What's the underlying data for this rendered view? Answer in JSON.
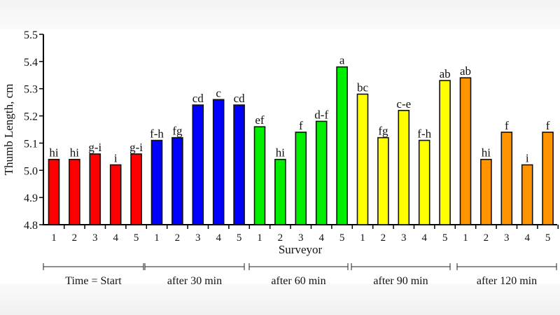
{
  "chart_data": {
    "type": "bar",
    "title": "",
    "xlabel": "Surveyor",
    "ylabel": "Thumb Length, cm",
    "ylim": [
      4.8,
      5.5
    ],
    "yticks": [
      "4.8",
      "4.9",
      "5.0",
      "5.1",
      "5.2",
      "5.3",
      "5.4",
      "5.5"
    ],
    "grid": false,
    "groups": [
      {
        "label": "Time = Start",
        "color": "#ff0000",
        "categories": [
          "1",
          "2",
          "3",
          "4",
          "5"
        ],
        "values": [
          5.04,
          5.04,
          5.06,
          5.02,
          5.06
        ],
        "letters": [
          "hi",
          "hi",
          "g-i",
          "i",
          "g-i"
        ]
      },
      {
        "label": "after 30 min",
        "color": "#0000ff",
        "categories": [
          "1",
          "2",
          "3",
          "4",
          "5"
        ],
        "values": [
          5.11,
          5.12,
          5.24,
          5.26,
          5.24
        ],
        "letters": [
          "f-h",
          "fg",
          "cd",
          "c",
          "cd"
        ]
      },
      {
        "label": "after 60 min",
        "color": "#00ee00",
        "categories": [
          "1",
          "2",
          "3",
          "4",
          "5"
        ],
        "values": [
          5.16,
          5.04,
          5.14,
          5.18,
          5.38
        ],
        "letters": [
          "ef",
          "hi",
          "f",
          "d-f",
          "a"
        ]
      },
      {
        "label": "after 90 min",
        "color": "#ffff00",
        "categories": [
          "1",
          "2",
          "3",
          "4",
          "5"
        ],
        "values": [
          5.28,
          5.12,
          5.22,
          5.11,
          5.33
        ],
        "letters": [
          "bc",
          "fg",
          "c-e",
          "f-h",
          "ab"
        ]
      },
      {
        "label": "after 120 min",
        "color": "#ff9400",
        "categories": [
          "1",
          "2",
          "3",
          "4",
          "5"
        ],
        "values": [
          5.34,
          5.04,
          5.14,
          5.02,
          5.14
        ],
        "letters": [
          "ab",
          "hi",
          "f",
          "i",
          "f"
        ]
      }
    ]
  }
}
